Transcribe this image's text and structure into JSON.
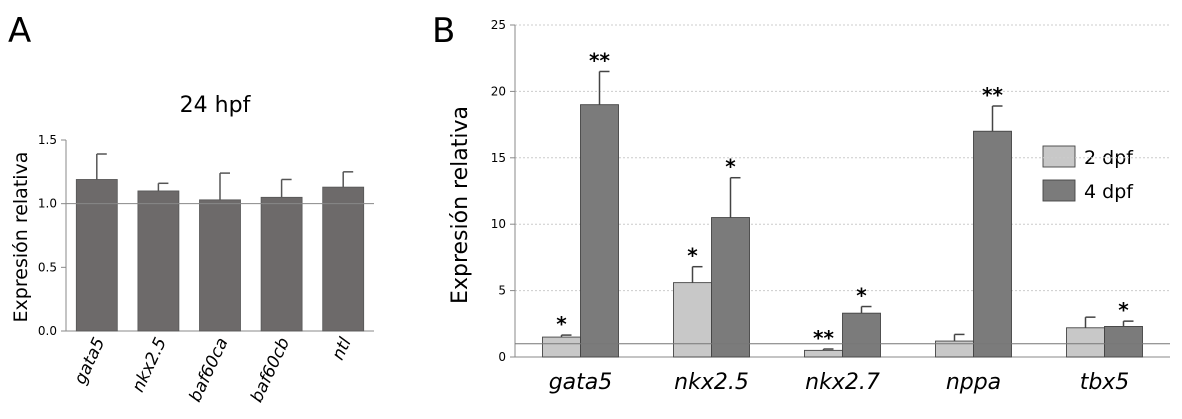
{
  "chart_data": [
    {
      "panel": "A",
      "type": "bar",
      "title": "24 hpf",
      "xlabel": "",
      "ylabel": "Expresión relativa",
      "ylim": [
        0,
        1.5
      ],
      "yticks": [
        "0.0",
        "0.5",
        "1.0",
        "1.5"
      ],
      "categories": [
        "gata5",
        "nkx2.5",
        "baf60ca",
        "baf60cb",
        "ntl"
      ],
      "reference_line": 1.0,
      "grid": false,
      "series": [
        {
          "values": [
            1.19,
            1.1,
            1.03,
            1.05,
            1.13
          ],
          "errors": [
            0.2,
            0.06,
            0.21,
            0.14,
            0.12
          ],
          "color": "#6d6a6a"
        }
      ]
    },
    {
      "panel": "B",
      "type": "bar",
      "title": "",
      "xlabel": "",
      "ylabel": "Expresión relativa",
      "ylim": [
        0,
        25
      ],
      "yticks": [
        "0",
        "5",
        "10",
        "15",
        "20",
        "25"
      ],
      "categories": [
        "gata5",
        "nkx2.5",
        "nkx2.7",
        "nppa",
        "tbx5"
      ],
      "reference_line": 1.0,
      "grid": true,
      "legend_position": "right",
      "series": [
        {
          "name": "2 dpf",
          "color": "#c8c8c8",
          "values": [
            1.5,
            5.6,
            0.5,
            1.2,
            2.2
          ],
          "errors": [
            0.15,
            1.2,
            0.1,
            0.5,
            0.8
          ],
          "significance": [
            "*",
            "*",
            "**",
            "",
            ""
          ]
        },
        {
          "name": "4 dpf",
          "color": "#7b7b7b",
          "values": [
            19.0,
            10.5,
            3.3,
            17.0,
            2.3
          ],
          "errors": [
            2.5,
            3.0,
            0.5,
            1.9,
            0.4
          ],
          "significance": [
            "**",
            "*",
            "*",
            "**",
            "*"
          ]
        }
      ]
    }
  ]
}
